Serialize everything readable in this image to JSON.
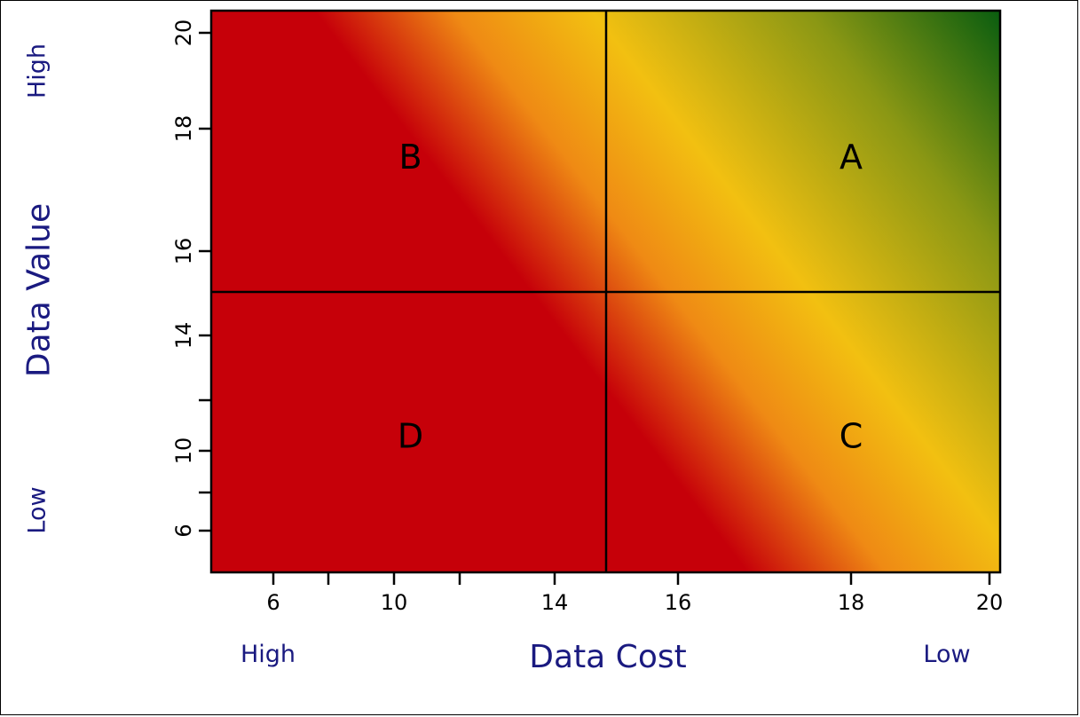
{
  "colors": {
    "low": "#c60009",
    "mid_low": "#ef8a14",
    "mid": "#f2c011",
    "mid_high": "#8a9714",
    "high": "#045a0f",
    "text_label": "#1a1a80",
    "quadrant_line": "#000000"
  },
  "labels": {
    "x_title": "Data Cost",
    "y_title": "Data Value",
    "x_low_end": "High",
    "x_high_end": "Low",
    "y_high_end": "High",
    "y_low_end": "Low"
  },
  "chart_data": {
    "type": "heatmap",
    "title": "",
    "xlabel": "Data Cost",
    "ylabel": "Data Value",
    "x_ticks": [
      6,
      8,
      10,
      12,
      14,
      15,
      16,
      18,
      20
    ],
    "x_tick_labels": [
      "6",
      "",
      "10",
      "",
      "14",
      "",
      "16",
      "18",
      "20"
    ],
    "y_ticks": [
      6,
      8,
      10,
      12,
      14,
      15,
      16,
      18,
      20
    ],
    "y_tick_labels": [
      "6",
      "",
      "10",
      "",
      "14",
      "",
      "16",
      "18",
      "20"
    ],
    "quadrant_split": {
      "x": 15,
      "y": 15
    },
    "quadrants": [
      {
        "name": "A",
        "x": 18,
        "y": 17.5
      },
      {
        "name": "B",
        "x": 10.5,
        "y": 17.5
      },
      {
        "name": "C",
        "x": 18,
        "y": 10.5
      },
      {
        "name": "D",
        "x": 10.5,
        "y": 10.5
      }
    ],
    "gradient_note": "Diagonal gradient from red (bottom-left) through orange and yellow to dark green (top-right)"
  }
}
